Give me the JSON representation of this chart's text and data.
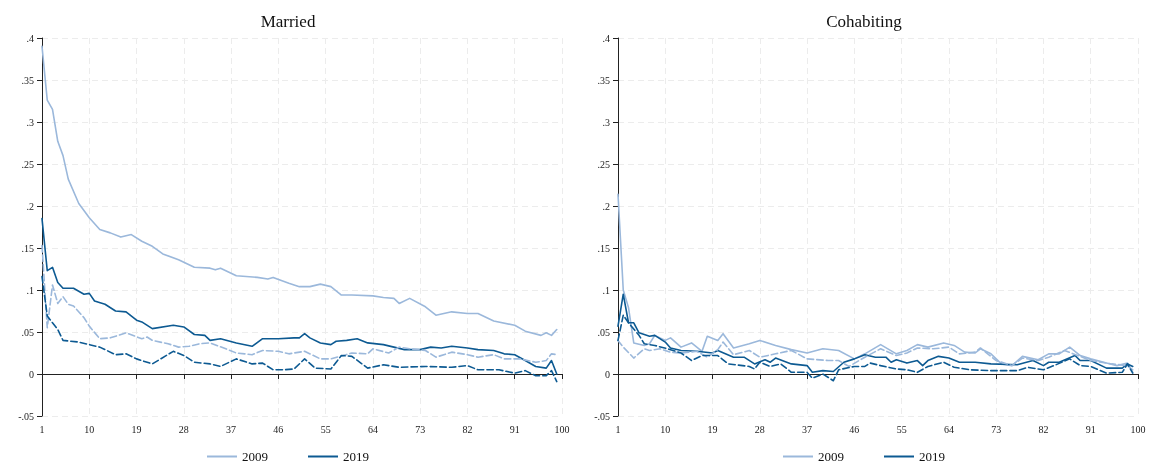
{
  "chart_data": [
    {
      "type": "line",
      "title": "Married",
      "xlim": [
        1,
        100
      ],
      "xticks": [
        1,
        10,
        19,
        28,
        37,
        46,
        55,
        64,
        73,
        82,
        91,
        100
      ],
      "ylim": [
        -0.05,
        0.4
      ],
      "yticks": [
        {
          "value": -0.05,
          "label": "-.05"
        },
        0,
        {
          "value": 0.05,
          "label": ".05"
        },
        {
          "value": 0.1,
          "label": ".1"
        },
        {
          "value": 0.15,
          "label": ".15"
        },
        {
          "value": 0.2,
          "label": ".2"
        },
        {
          "value": 0.25,
          "label": ".25"
        },
        {
          "value": 0.3,
          "label": ".3"
        },
        {
          "value": 0.35,
          "label": ".35"
        },
        {
          "value": 0.4,
          "label": ".4"
        }
      ],
      "grid": true,
      "legend": "bottom",
      "marker": "none",
      "series": [
        {
          "name": "2009",
          "color": "#9bb8db",
          "line_style": "solid",
          "x": [
            1,
            2,
            3,
            4,
            5,
            6,
            8,
            10,
            12,
            14,
            16,
            18,
            20,
            22,
            24,
            27,
            30,
            33,
            34,
            35,
            38,
            42,
            44,
            45,
            48,
            50,
            52,
            54,
            56,
            58,
            60,
            64,
            66,
            68,
            69,
            71,
            74,
            76,
            79,
            82,
            84,
            87,
            91,
            93,
            96,
            97,
            98,
            99
          ],
          "values": [
            0.39,
            0.326,
            0.315,
            0.277,
            0.26,
            0.232,
            0.203,
            0.186,
            0.172,
            0.168,
            0.163,
            0.166,
            0.158,
            0.152,
            0.143,
            0.136,
            0.127,
            0.126,
            0.124,
            0.126,
            0.117,
            0.115,
            0.113,
            0.115,
            0.108,
            0.104,
            0.104,
            0.107,
            0.104,
            0.094,
            0.094,
            0.093,
            0.091,
            0.09,
            0.084,
            0.09,
            0.08,
            0.07,
            0.074,
            0.072,
            0.072,
            0.063,
            0.058,
            0.051,
            0.046,
            0.049,
            0.046,
            0.053
          ]
        },
        {
          "name": "2019",
          "color": "#0d5a92",
          "line_style": "solid",
          "x": [
            1,
            2,
            3,
            4,
            5,
            7,
            9,
            10,
            11,
            13,
            15,
            17,
            19,
            20,
            22,
            26,
            28,
            30,
            32,
            33,
            35,
            38,
            41,
            43,
            46,
            49,
            50,
            51,
            52,
            54,
            56,
            57,
            59,
            61,
            63,
            66,
            68,
            70,
            73,
            75,
            77,
            79,
            82,
            84,
            87,
            89,
            91,
            93,
            95,
            97,
            98,
            99
          ],
          "values": [
            0.185,
            0.123,
            0.127,
            0.109,
            0.102,
            0.102,
            0.095,
            0.096,
            0.087,
            0.083,
            0.075,
            0.074,
            0.064,
            0.062,
            0.054,
            0.058,
            0.056,
            0.047,
            0.046,
            0.04,
            0.042,
            0.037,
            0.033,
            0.042,
            0.042,
            0.043,
            0.043,
            0.048,
            0.043,
            0.037,
            0.035,
            0.039,
            0.04,
            0.042,
            0.037,
            0.035,
            0.032,
            0.029,
            0.029,
            0.032,
            0.031,
            0.033,
            0.031,
            0.029,
            0.028,
            0.024,
            0.023,
            0.016,
            0.009,
            0.007,
            0.016,
            0
          ]
        },
        {
          "color": "#9bb8db",
          "line_style": "dashed",
          "x": [
            1,
            2,
            3,
            4,
            5,
            6,
            7,
            9,
            10,
            12,
            14,
            17,
            20,
            21,
            22,
            25,
            27,
            29,
            31,
            33,
            36,
            38,
            41,
            43,
            46,
            48,
            51,
            54,
            56,
            60,
            63,
            64,
            67,
            69,
            71,
            74,
            76,
            79,
            82,
            84,
            87,
            89,
            92,
            95,
            97,
            98,
            99
          ],
          "values": [
            0.153,
            0.055,
            0.106,
            0.084,
            0.092,
            0.083,
            0.081,
            0.067,
            0.057,
            0.042,
            0.043,
            0.049,
            0.042,
            0.044,
            0.04,
            0.036,
            0.032,
            0.033,
            0.036,
            0.037,
            0.03,
            0.025,
            0.023,
            0.028,
            0.027,
            0.024,
            0.027,
            0.018,
            0.018,
            0.025,
            0.024,
            0.03,
            0.025,
            0.032,
            0.03,
            0.028,
            0.02,
            0.026,
            0.023,
            0.02,
            0.023,
            0.018,
            0.018,
            0.014,
            0.016,
            0.024,
            0.023
          ]
        },
        {
          "color": "#0d5a92",
          "line_style": "dashed",
          "x": [
            1,
            2,
            4,
            5,
            8,
            12,
            15,
            17,
            19,
            22,
            26,
            28,
            30,
            33,
            35,
            38,
            41,
            43,
            45,
            47,
            49,
            51,
            53,
            56,
            58,
            60,
            63,
            66,
            69,
            74,
            79,
            82,
            84,
            88,
            91,
            93,
            95,
            97,
            98,
            99
          ],
          "values": [
            0.116,
            0.069,
            0.053,
            0.04,
            0.038,
            0.032,
            0.023,
            0.024,
            0.018,
            0.012,
            0.027,
            0.022,
            0.014,
            0.012,
            0.009,
            0.018,
            0.012,
            0.013,
            0.005,
            0.005,
            0.006,
            0.018,
            0.007,
            0.006,
            0.022,
            0.021,
            0.007,
            0.011,
            0.008,
            0.009,
            0.008,
            0.01,
            0.005,
            0.005,
            0.001,
            0.004,
            -0.002,
            -0.002,
            0.004,
            -0.009
          ]
        }
      ]
    },
    {
      "type": "line",
      "title": "Cohabiting",
      "xlim": [
        1,
        100
      ],
      "xticks": [
        1,
        10,
        19,
        28,
        37,
        46,
        55,
        64,
        73,
        82,
        91,
        100
      ],
      "ylim": [
        -0.05,
        0.4
      ],
      "yticks": [
        {
          "value": -0.05,
          "label": "-.05"
        },
        0,
        {
          "value": 0.05,
          "label": ".05"
        },
        {
          "value": 0.1,
          "label": ".1"
        },
        {
          "value": 0.15,
          "label": ".15"
        },
        {
          "value": 0.2,
          "label": ".2"
        },
        {
          "value": 0.25,
          "label": ".25"
        },
        {
          "value": 0.3,
          "label": ".3"
        },
        {
          "value": 0.35,
          "label": ".35"
        },
        {
          "value": 0.4,
          "label": ".4"
        }
      ],
      "grid": true,
      "legend": "bottom",
      "marker": "none",
      "series": [
        {
          "name": "2009",
          "color": "#9bb8db",
          "line_style": "solid",
          "x": [
            1,
            2,
            3,
            4,
            6,
            7,
            8,
            10,
            11,
            13,
            15,
            17,
            18,
            20,
            21,
            23,
            26,
            28,
            31,
            34,
            37,
            40,
            43,
            46,
            48,
            51,
            54,
            56,
            58,
            60,
            63,
            65,
            67,
            69,
            70,
            72,
            74,
            76,
            78,
            81,
            83,
            85,
            87,
            89,
            91,
            94,
            96,
            98,
            99
          ],
          "values": [
            0.214,
            0.1,
            0.079,
            0.037,
            0.034,
            0.036,
            0.046,
            0.04,
            0.043,
            0.032,
            0.037,
            0.027,
            0.045,
            0.04,
            0.048,
            0.031,
            0.036,
            0.04,
            0.034,
            0.029,
            0.025,
            0.03,
            0.028,
            0.018,
            0.024,
            0.035,
            0.024,
            0.028,
            0.035,
            0.032,
            0.037,
            0.034,
            0.026,
            0.025,
            0.03,
            0.024,
            0.012,
            0.01,
            0.021,
            0.017,
            0.024,
            0.024,
            0.032,
            0.022,
            0.018,
            0.013,
            0.01,
            0.013,
            0.002
          ]
        },
        {
          "name": "2019",
          "color": "#0d5a92",
          "line_style": "solid",
          "x": [
            1,
            2,
            3,
            4,
            5,
            7,
            8,
            10,
            11,
            13,
            16,
            19,
            20,
            23,
            25,
            27,
            29,
            30,
            31,
            34,
            37,
            38,
            40,
            42,
            44,
            46,
            48,
            50,
            52,
            53,
            54,
            56,
            58,
            59,
            60,
            62,
            64,
            66,
            69,
            72,
            77,
            80,
            82,
            83,
            85,
            88,
            89,
            91,
            94,
            97,
            98,
            99
          ],
          "values": [
            0.057,
            0.095,
            0.061,
            0.061,
            0.049,
            0.045,
            0.046,
            0.038,
            0.031,
            0.028,
            0.027,
            0.025,
            0.028,
            0.02,
            0.02,
            0.012,
            0.017,
            0.014,
            0.019,
            0.012,
            0.01,
            0.002,
            0.004,
            0.003,
            0.014,
            0.018,
            0.023,
            0.02,
            0.02,
            0.014,
            0.017,
            0.013,
            0.016,
            0.01,
            0.016,
            0.021,
            0.019,
            0.014,
            0.014,
            0.012,
            0.011,
            0.016,
            0.01,
            0.014,
            0.014,
            0.022,
            0.016,
            0.016,
            0.007,
            0.007,
            0.012,
            0.009
          ]
        },
        {
          "color": "#9bb8db",
          "line_style": "dashed",
          "x": [
            1,
            2,
            4,
            6,
            7,
            9,
            11,
            13,
            16,
            18,
            20,
            21,
            23,
            26,
            28,
            31,
            34,
            37,
            41,
            43,
            45,
            48,
            51,
            54,
            56,
            58,
            61,
            64,
            66,
            69,
            70,
            73,
            76,
            78,
            81,
            83,
            86,
            89,
            91,
            95,
            98,
            99
          ],
          "values": [
            0.04,
            0.032,
            0.019,
            0.03,
            0.028,
            0.03,
            0.026,
            0.025,
            0.027,
            0.02,
            0.029,
            0.038,
            0.023,
            0.028,
            0.02,
            0.024,
            0.028,
            0.018,
            0.016,
            0.016,
            0.009,
            0.02,
            0.03,
            0.022,
            0.025,
            0.031,
            0.03,
            0.032,
            0.024,
            0.026,
            0.031,
            0.016,
            0.01,
            0.019,
            0.016,
            0.02,
            0.028,
            0.021,
            0.016,
            0.012,
            0.01,
            0.005
          ]
        },
        {
          "color": "#0d5a92",
          "line_style": "dashed",
          "x": [
            1,
            2,
            3,
            5,
            6,
            8,
            11,
            13,
            15,
            17,
            20,
            22,
            26,
            27,
            28,
            30,
            32,
            34,
            37,
            38,
            40,
            42,
            43,
            46,
            48,
            49,
            51,
            54,
            56,
            58,
            60,
            63,
            65,
            68,
            72,
            77,
            79,
            82,
            84,
            87,
            89,
            91,
            94,
            97,
            98,
            99
          ],
          "values": [
            0.04,
            0.07,
            0.061,
            0.046,
            0.036,
            0.034,
            0.029,
            0.025,
            0.016,
            0.022,
            0.022,
            0.012,
            0.009,
            0.006,
            0.014,
            0.009,
            0.012,
            0.002,
            0.002,
            -0.005,
            0,
            -0.008,
            0.005,
            0.009,
            0.009,
            0.013,
            0.01,
            0.006,
            0.005,
            0.002,
            0.009,
            0.014,
            0.008,
            0.005,
            0.004,
            0.004,
            0.008,
            0.005,
            0.01,
            0.018,
            0.01,
            0.009,
            0.001,
            0.002,
            0.012,
            0.001
          ]
        }
      ]
    }
  ]
}
